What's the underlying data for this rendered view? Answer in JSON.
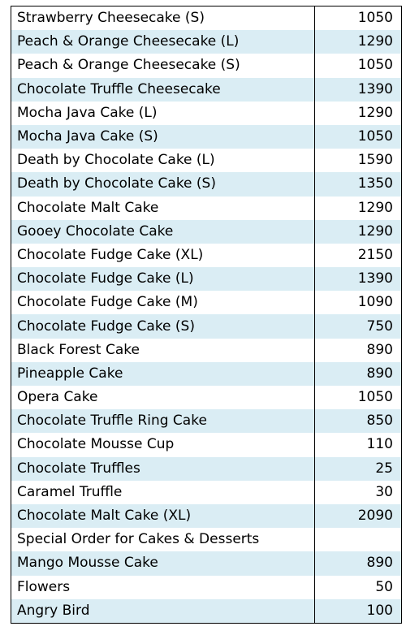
{
  "colors": {
    "stripe": "#daedf4",
    "background": "#ffffff",
    "text": "#000000",
    "border": "#000000"
  },
  "menu": {
    "items": [
      {
        "name": "Strawberry Cheesecake (S)",
        "price": "1050"
      },
      {
        "name": "Peach & Orange Cheesecake (L)",
        "price": "1290"
      },
      {
        "name": "Peach & Orange Cheesecake (S)",
        "price": "1050"
      },
      {
        "name": "Chocolate Truffle Cheesecake",
        "price": "1390"
      },
      {
        "name": "Mocha Java Cake (L)",
        "price": "1290"
      },
      {
        "name": "Mocha Java Cake (S)",
        "price": "1050"
      },
      {
        "name": "Death by Chocolate Cake (L)",
        "price": "1590"
      },
      {
        "name": "Death by Chocolate Cake (S)",
        "price": "1350"
      },
      {
        "name": "Chocolate Malt Cake",
        "price": "1290"
      },
      {
        "name": "Gooey Chocolate Cake",
        "price": "1290"
      },
      {
        "name": "Chocolate Fudge Cake (XL)",
        "price": "2150"
      },
      {
        "name": "Chocolate Fudge Cake (L)",
        "price": "1390"
      },
      {
        "name": "Chocolate Fudge Cake (M)",
        "price": "1090"
      },
      {
        "name": "Chocolate Fudge Cake (S)",
        "price": "750"
      },
      {
        "name": "Black Forest Cake",
        "price": "890"
      },
      {
        "name": "Pineapple Cake",
        "price": "890"
      },
      {
        "name": "Opera Cake",
        "price": "1050"
      },
      {
        "name": "Chocolate Truffle Ring Cake",
        "price": "850"
      },
      {
        "name": "Chocolate Mousse Cup",
        "price": "110"
      },
      {
        "name": "Chocolate Truffles",
        "price": "25"
      },
      {
        "name": "Caramel Truffle",
        "price": "30"
      },
      {
        "name": "Chocolate Malt Cake (XL)",
        "price": "2090"
      },
      {
        "name": "Special Order for Cakes & Desserts",
        "price": ""
      },
      {
        "name": "Mango Mousse Cake",
        "price": "890"
      },
      {
        "name": "Flowers",
        "price": "50"
      },
      {
        "name": "Angry Bird",
        "price": "100"
      }
    ]
  }
}
